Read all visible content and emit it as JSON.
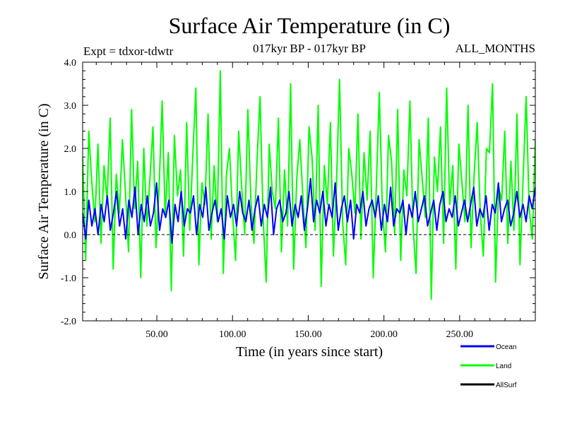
{
  "chart_data": {
    "type": "line",
    "title": "Surface Air Temperature (in C)",
    "subtitle": "017kyr BP - 017kyr BP",
    "experiment": "Expt = tdxor-tdwtr",
    "period": "ALL_MONTHS",
    "xlabel": "Time (in years since start)",
    "ylabel": "Surface Air Temperature (in C)",
    "xlim": [
      1,
      300
    ],
    "ylim": [
      -2.0,
      4.0
    ],
    "x_ticks": [
      50,
      100,
      150,
      200,
      250
    ],
    "x_tick_labels": [
      "50.00",
      "100.00",
      "150.00",
      "200.00",
      "250.00"
    ],
    "y_ticks": [
      -2,
      -1,
      0,
      1,
      2,
      3,
      4
    ],
    "y_tick_labels": [
      "-2.0",
      "-1.0",
      "0.0",
      "1.0",
      "2.0",
      "3.0",
      "4.0"
    ],
    "reference_line": 0.0,
    "series": [
      {
        "name": "Land",
        "color": "#00ff00",
        "mean": 0.9,
        "min": -1.5,
        "max": 3.8,
        "values": [
          1.8,
          -0.6,
          2.4,
          1.2,
          0.3,
          2.1,
          -0.2,
          1.6,
          0.8,
          2.7,
          -0.8,
          1.4,
          0.5,
          2.2,
          1.0,
          -0.4,
          2.9,
          0.6,
          1.7,
          -1.0,
          2.0,
          0.2,
          1.3,
          2.5,
          -0.3,
          1.1,
          3.1,
          0.4,
          1.9,
          -1.3,
          2.3,
          0.9,
          1.5,
          -0.5,
          2.6,
          0.1,
          1.8,
          3.4,
          -0.7,
          1.2,
          0.7,
          2.8,
          -0.1,
          1.6,
          0.3,
          3.8,
          -0.9,
          1.4,
          2.0,
          0.5,
          -0.6,
          2.4,
          1.1,
          0.0,
          2.9,
          0.8,
          -0.2,
          1.7,
          3.2,
          0.4,
          -1.1,
          2.1,
          1.0,
          0.6,
          2.7,
          -0.4,
          1.5,
          0.2,
          3.5,
          -0.8,
          1.3,
          2.2,
          0.9,
          -0.3,
          2.5,
          1.8,
          0.1,
          3.0,
          -1.2,
          1.6,
          0.7,
          2.6,
          -0.5,
          1.2,
          3.6,
          0.3,
          -0.7,
          2.0,
          1.4,
          0.5,
          2.8,
          -0.1,
          1.9,
          0.8,
          2.4,
          -1.0,
          1.1,
          3.3,
          0.6,
          -0.4,
          2.3,
          1.7,
          0.0,
          2.9,
          -0.6,
          1.5,
          0.9,
          3.1,
          0.2,
          -0.9,
          2.2,
          1.3,
          0.4,
          2.7,
          -1.5,
          1.8,
          1.0,
          2.5,
          -0.2,
          3.4,
          0.7,
          1.6,
          -0.8,
          2.1,
          1.2,
          0.3,
          3.0,
          -0.3,
          1.4,
          2.6,
          0.5,
          -0.5,
          2.0,
          1.9,
          3.5,
          -1.1,
          1.1,
          0.8,
          2.4,
          -0.2,
          1.7,
          0.1,
          2.8,
          -0.7,
          1.3,
          3.2,
          0.6,
          -0.1,
          2.2
        ]
      },
      {
        "name": "Ocean",
        "color": "#0000ff",
        "mean": 0.4,
        "min": -0.2,
        "max": 1.3,
        "values": [
          0.5,
          -0.1,
          0.8,
          0.2,
          0.6,
          0.0,
          0.7,
          0.3,
          0.9,
          0.1,
          0.5,
          1.0,
          0.2,
          0.6,
          -0.1,
          0.8,
          0.4,
          1.1,
          0.0,
          0.7,
          0.3,
          0.9,
          0.2,
          0.5,
          1.2,
          0.1,
          0.6,
          0.4,
          0.8,
          -0.2,
          0.7,
          0.3,
          1.0,
          0.2,
          0.6,
          0.5,
          0.9,
          0.0,
          0.7,
          0.4,
          1.1,
          0.1,
          0.5,
          0.8,
          0.3,
          0.6,
          -0.1,
          0.9,
          0.4,
          0.7,
          0.2,
          1.0,
          0.5,
          0.3,
          0.8,
          0.1,
          0.6,
          0.9,
          0.2,
          0.7,
          0.4,
          1.1,
          0.0,
          0.6,
          0.8,
          0.3,
          0.5,
          1.0,
          0.2,
          0.7,
          0.4,
          0.9,
          0.1,
          0.6,
          1.3,
          0.3,
          0.8,
          0.5,
          1.0,
          0.2,
          0.7,
          0.4,
          1.2,
          0.1,
          0.6,
          0.9,
          0.3,
          0.8,
          -0.1,
          0.7,
          0.5,
          1.0,
          0.2,
          0.6,
          0.8,
          0.4,
          0.9,
          0.1,
          0.7,
          0.3,
          1.1,
          0.2,
          0.6,
          0.5,
          0.8,
          0.0,
          0.7,
          0.4,
          1.0,
          0.3,
          0.6,
          0.9,
          0.2,
          0.5,
          0.8,
          0.1,
          0.7,
          1.0,
          0.3,
          0.6,
          0.4,
          0.9,
          0.2,
          0.5,
          0.8,
          0.3,
          0.7,
          1.1,
          0.2,
          0.6,
          0.4,
          0.9,
          0.1,
          0.7,
          0.5,
          1.2,
          0.3,
          0.6,
          0.8,
          0.2,
          0.5,
          1.0,
          0.4,
          0.7,
          0.3,
          0.9,
          0.6,
          1.1
        ]
      },
      {
        "name": "AllSurf",
        "color": "#000000",
        "values": []
      }
    ],
    "legend": [
      "Ocean",
      "Land",
      "AllSurf"
    ],
    "legend_position": "bottom-right"
  }
}
